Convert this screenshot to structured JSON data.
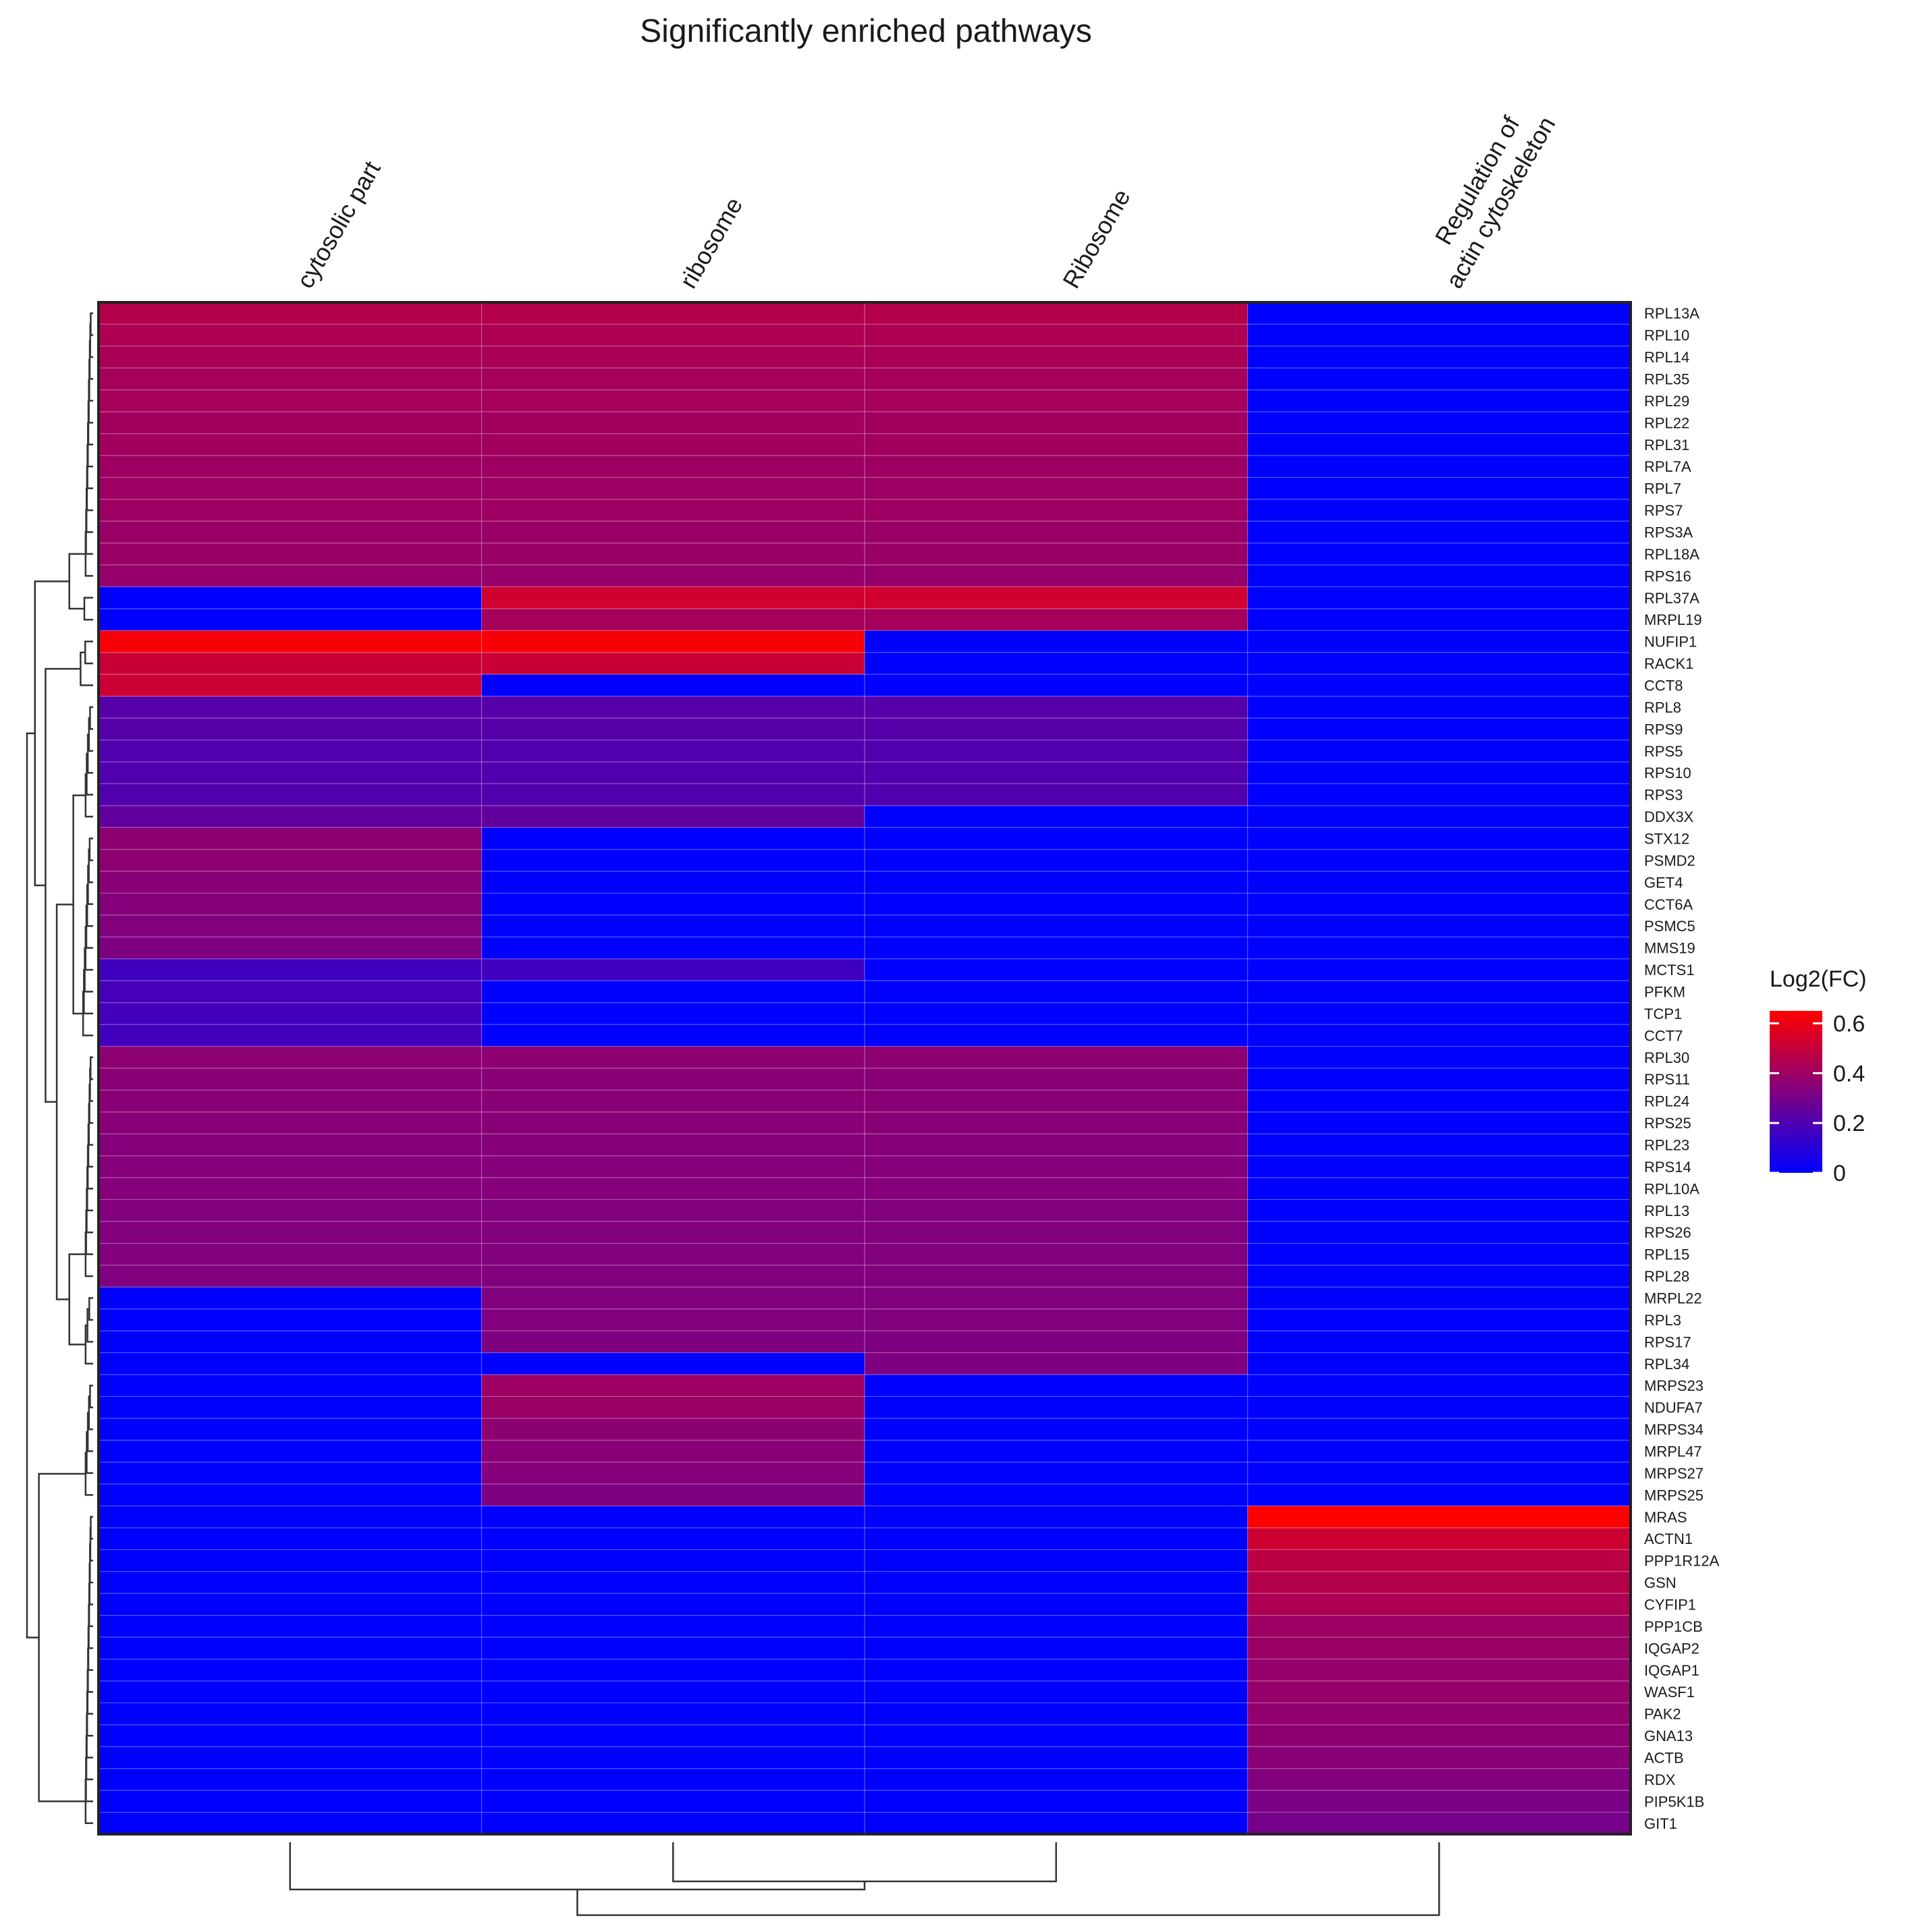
{
  "chart_data": {
    "type": "heatmap",
    "title": "Significantly enriched pathways",
    "columns": [
      [
        "cytosolic part"
      ],
      [
        "ribosome"
      ],
      [
        "Ribosome"
      ],
      [
        "Regulation of",
        "actin cytoskeleton"
      ]
    ],
    "rows": [
      "RPL13A",
      "RPL10",
      "RPL14",
      "RPL35",
      "RPL29",
      "RPL22",
      "RPL31",
      "RPL7A",
      "RPL7",
      "RPS7",
      "RPS3A",
      "RPL18A",
      "RPS16",
      "RPL37A",
      "MRPL19",
      "NUFIP1",
      "RACK1",
      "CCT8",
      "RPL8",
      "RPS9",
      "RPS5",
      "RPS10",
      "RPS3",
      "DDX3X",
      "STX12",
      "PSMD2",
      "GET4",
      "CCT6A",
      "PSMC5",
      "MMS19",
      "MCTS1",
      "PFKM",
      "TCP1",
      "CCT7",
      "RPL30",
      "RPS11",
      "RPL24",
      "RPS25",
      "RPL23",
      "RPS14",
      "RPL10A",
      "RPL13",
      "RPS26",
      "RPL15",
      "RPL28",
      "MRPL22",
      "RPL3",
      "RPS17",
      "RPL34",
      "MRPS23",
      "NDUFA7",
      "MRPS34",
      "MRPL47",
      "MRPS27",
      "MRPS25",
      "MRAS",
      "ACTN1",
      "PPP1R12A",
      "GSN",
      "CYFIP1",
      "PPP1CB",
      "IQGAP2",
      "IQGAP1",
      "WASF1",
      "PAK2",
      "GNA13",
      "ACTB",
      "RDX",
      "PIP5K1B",
      "GIT1"
    ],
    "values": [
      [
        0.46,
        0.46,
        0.46,
        0
      ],
      [
        0.44,
        0.44,
        0.44,
        0
      ],
      [
        0.43,
        0.43,
        0.43,
        0
      ],
      [
        0.42,
        0.42,
        0.42,
        0
      ],
      [
        0.42,
        0.42,
        0.42,
        0
      ],
      [
        0.41,
        0.41,
        0.41,
        0
      ],
      [
        0.41,
        0.41,
        0.41,
        0
      ],
      [
        0.4,
        0.4,
        0.4,
        0
      ],
      [
        0.4,
        0.4,
        0.4,
        0
      ],
      [
        0.4,
        0.4,
        0.4,
        0
      ],
      [
        0.39,
        0.39,
        0.39,
        0
      ],
      [
        0.39,
        0.39,
        0.39,
        0
      ],
      [
        0.38,
        0.38,
        0.38,
        0
      ],
      [
        0,
        0.53,
        0.53,
        0
      ],
      [
        0,
        0.42,
        0.42,
        0
      ],
      [
        0.63,
        0.63,
        0,
        0
      ],
      [
        0.51,
        0.51,
        0,
        0
      ],
      [
        0.52,
        0,
        0,
        0
      ],
      [
        0.22,
        0.22,
        0.22,
        0
      ],
      [
        0.22,
        0.22,
        0.22,
        0
      ],
      [
        0.21,
        0.21,
        0.21,
        0
      ],
      [
        0.21,
        0.21,
        0.21,
        0
      ],
      [
        0.21,
        0.21,
        0.21,
        0
      ],
      [
        0.25,
        0.25,
        0,
        0
      ],
      [
        0.36,
        0,
        0,
        0
      ],
      [
        0.36,
        0,
        0,
        0
      ],
      [
        0.35,
        0,
        0,
        0
      ],
      [
        0.34,
        0,
        0,
        0
      ],
      [
        0.33,
        0,
        0,
        0
      ],
      [
        0.32,
        0,
        0,
        0
      ],
      [
        0.16,
        0.16,
        0,
        0
      ],
      [
        0.18,
        0,
        0,
        0
      ],
      [
        0.17,
        0,
        0,
        0
      ],
      [
        0.17,
        0,
        0,
        0
      ],
      [
        0.36,
        0.36,
        0.36,
        0
      ],
      [
        0.35,
        0.35,
        0.35,
        0
      ],
      [
        0.35,
        0.35,
        0.35,
        0
      ],
      [
        0.35,
        0.35,
        0.35,
        0
      ],
      [
        0.34,
        0.34,
        0.34,
        0
      ],
      [
        0.34,
        0.34,
        0.34,
        0
      ],
      [
        0.34,
        0.34,
        0.34,
        0
      ],
      [
        0.33,
        0.33,
        0.33,
        0
      ],
      [
        0.33,
        0.33,
        0.33,
        0
      ],
      [
        0.33,
        0.33,
        0.33,
        0
      ],
      [
        0.33,
        0.33,
        0.33,
        0
      ],
      [
        0,
        0.33,
        0.33,
        0
      ],
      [
        0,
        0.33,
        0.33,
        0
      ],
      [
        0,
        0.32,
        0.32,
        0
      ],
      [
        0,
        0,
        0.32,
        0
      ],
      [
        0,
        0.4,
        0,
        0
      ],
      [
        0,
        0.39,
        0,
        0
      ],
      [
        0,
        0.36,
        0,
        0
      ],
      [
        0,
        0.35,
        0,
        0
      ],
      [
        0,
        0.34,
        0,
        0
      ],
      [
        0,
        0.32,
        0,
        0
      ],
      [
        0,
        0,
        0,
        0.65
      ],
      [
        0,
        0,
        0,
        0.52
      ],
      [
        0,
        0,
        0,
        0.48
      ],
      [
        0,
        0,
        0,
        0.46
      ],
      [
        0,
        0,
        0,
        0.44
      ],
      [
        0,
        0,
        0,
        0.4
      ],
      [
        0,
        0,
        0,
        0.39
      ],
      [
        0,
        0,
        0,
        0.38
      ],
      [
        0,
        0,
        0,
        0.38
      ],
      [
        0,
        0,
        0,
        0.37
      ],
      [
        0,
        0,
        0,
        0.36
      ],
      [
        0,
        0,
        0,
        0.35
      ],
      [
        0,
        0,
        0,
        0.33
      ],
      [
        0,
        0,
        0,
        0.31
      ],
      [
        0,
        0,
        0,
        0.3
      ]
    ],
    "color_scale": {
      "low": "#0000ff",
      "high": "#ff0000",
      "min": 0,
      "max": 0.65
    },
    "legend": {
      "title": "Log2(FC)",
      "ticks": [
        {
          "value": 0.6,
          "label": "0.6"
        },
        {
          "value": 0.4,
          "label": "0.4"
        },
        {
          "value": 0.2,
          "label": "0.2"
        },
        {
          "value": 0,
          "label": "0"
        }
      ],
      "placement": "right"
    }
  }
}
